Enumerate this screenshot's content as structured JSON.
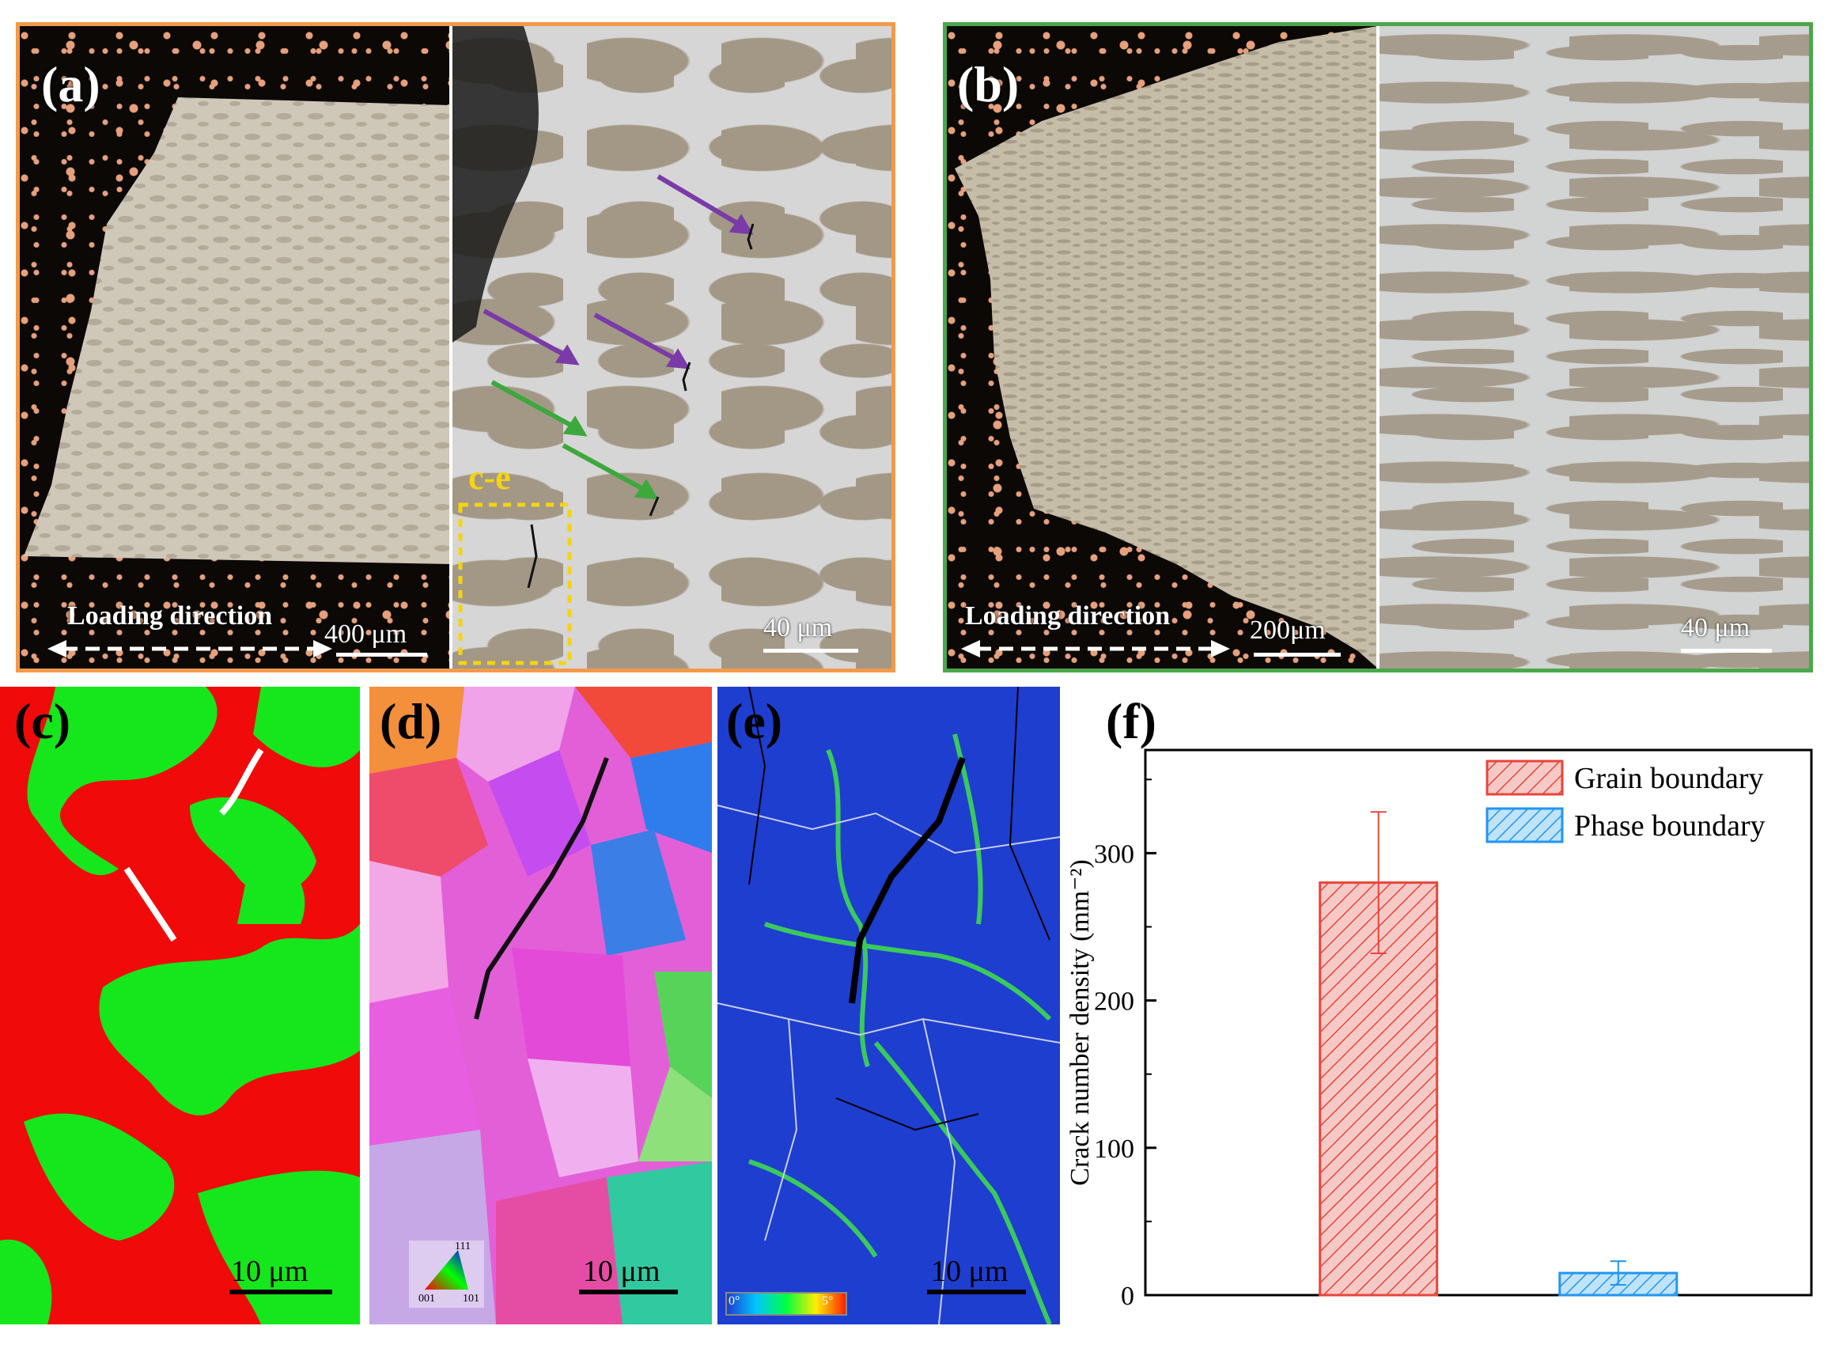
{
  "panels": {
    "a": {
      "label": "(a)",
      "left_scale": "400 μm",
      "right_scale": "40 μm",
      "loading": "Loading direction",
      "region": "c-e"
    },
    "b": {
      "label": "(b)",
      "left_scale": "200μm",
      "right_scale": "40 μm",
      "loading": "Loading direction"
    },
    "c": {
      "label": "(c)",
      "scale": "10 μm"
    },
    "d": {
      "label": "(d)",
      "scale": "10 μm",
      "ipf": {
        "top": "111",
        "left": "001",
        "right": "101"
      }
    },
    "e": {
      "label": "(e)",
      "scale": "10 μm",
      "kam_min": "0°",
      "kam_max": "5°"
    },
    "f": {
      "label": "(f)"
    }
  },
  "colors": {
    "grain_boundary": "#e8453c",
    "phase_boundary": "#2196f3",
    "frame_a": "#f39a4a",
    "frame_b": "#4aa84a"
  },
  "chart_data": {
    "type": "bar",
    "categories": [
      "Grain boundary",
      "Phase boundary"
    ],
    "values": [
      280,
      15
    ],
    "errors": [
      48,
      8
    ],
    "ylabel": "Crack number density (mm⁻²)",
    "xlabel": "",
    "ylim": [
      0,
      370
    ],
    "yticks": [
      0,
      100,
      200,
      300
    ],
    "legend": [
      "Grain boundary",
      "Phase boundary"
    ],
    "legend_position": "top-right",
    "grid": false
  }
}
